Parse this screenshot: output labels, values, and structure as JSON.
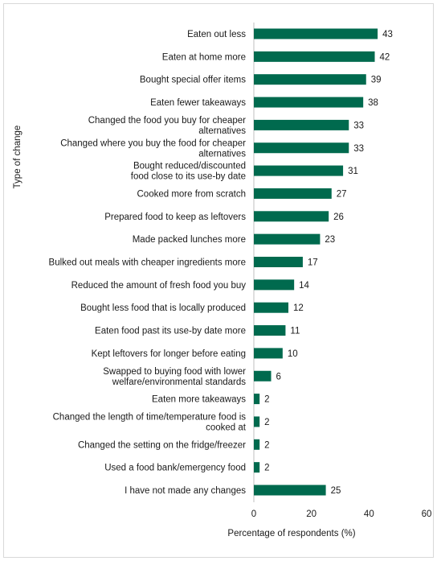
{
  "chart_data": {
    "type": "bar",
    "orientation": "horizontal",
    "title": "",
    "xlabel": "Percentage of respondents (%)",
    "ylabel": "Type of change",
    "xlim": [
      0,
      60
    ],
    "xticks": [
      0,
      20,
      40,
      60
    ],
    "grid": false,
    "bar_color": "#006a4e",
    "categories": [
      [
        "Eaten out less"
      ],
      [
        "Eaten at home more"
      ],
      [
        "Bought special offer items"
      ],
      [
        "Eaten fewer takeaways"
      ],
      [
        "Changed the food you buy for cheaper",
        "alternatives"
      ],
      [
        "Changed where you buy the food for cheaper",
        "alternatives"
      ],
      [
        "Bought reduced/discounted",
        "food close to its use-by date"
      ],
      [
        "Cooked more from scratch"
      ],
      [
        "Prepared food to keep as leftovers"
      ],
      [
        "Made packed lunches more"
      ],
      [
        "Bulked out meals with cheaper ingredients more"
      ],
      [
        "Reduced the amount of fresh food you buy"
      ],
      [
        "Bought less food that is locally produced"
      ],
      [
        "Eaten food past its use-by date more"
      ],
      [
        "Kept leftovers for longer before eating"
      ],
      [
        "Swapped to buying food with lower",
        "welfare/environmental standards"
      ],
      [
        "Eaten more takeaways"
      ],
      [
        "Changed the length of time/temperature food is",
        "cooked at"
      ],
      [
        "Changed the setting on the fridge/freezer"
      ],
      [
        "Used a food bank/emergency food"
      ],
      [
        "I have not made any changes"
      ]
    ],
    "values": [
      43,
      42,
      39,
      38,
      33,
      33,
      31,
      27,
      26,
      23,
      17,
      14,
      12,
      11,
      10,
      6,
      2,
      2,
      2,
      2,
      25
    ]
  }
}
